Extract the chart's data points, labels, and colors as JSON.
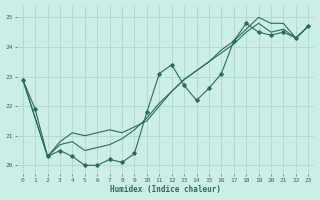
{
  "xlabel": "Humidex (Indice chaleur)",
  "bg_color": "#cceee8",
  "line_color": "#2a6b5e",
  "grid_color": "#b0d8d0",
  "ylim": [
    19.7,
    25.4
  ],
  "xlim": [
    -0.5,
    23.5
  ],
  "yticks": [
    20,
    21,
    22,
    23,
    24,
    25
  ],
  "xticks": [
    0,
    1,
    2,
    3,
    4,
    5,
    6,
    7,
    8,
    9,
    10,
    11,
    12,
    13,
    14,
    15,
    16,
    17,
    18,
    19,
    20,
    21,
    22,
    23
  ],
  "line1_x": [
    0,
    1,
    2,
    3,
    4,
    5,
    6,
    7,
    8,
    9,
    10,
    11,
    12,
    13,
    14,
    15,
    16,
    17,
    18,
    19,
    20,
    21,
    22,
    23
  ],
  "line1_y": [
    22.9,
    21.9,
    20.3,
    20.5,
    20.3,
    20.0,
    20.0,
    20.2,
    20.1,
    20.4,
    21.8,
    23.1,
    23.4,
    22.7,
    22.2,
    22.6,
    23.1,
    24.2,
    24.8,
    24.5,
    24.4,
    24.5,
    24.3,
    24.7
  ],
  "line2_x": [
    0,
    2,
    3,
    4,
    5,
    6,
    7,
    8,
    9,
    10,
    11,
    12,
    13,
    14,
    15,
    16,
    17,
    18,
    19,
    20,
    21,
    22,
    23
  ],
  "line2_y": [
    22.9,
    20.3,
    20.7,
    20.8,
    20.5,
    20.6,
    20.7,
    20.9,
    21.2,
    21.6,
    22.1,
    22.5,
    22.9,
    23.2,
    23.5,
    23.8,
    24.1,
    24.5,
    24.8,
    24.5,
    24.6,
    24.3,
    24.7
  ],
  "line3_x": [
    0,
    2,
    3,
    4,
    5,
    6,
    7,
    8,
    9,
    10,
    11,
    12,
    13,
    14,
    15,
    16,
    17,
    18,
    19,
    20,
    21,
    22,
    23
  ],
  "line3_y": [
    22.9,
    20.3,
    20.8,
    21.1,
    21.0,
    21.1,
    21.2,
    21.1,
    21.3,
    21.5,
    22.0,
    22.5,
    22.9,
    23.2,
    23.5,
    23.9,
    24.2,
    24.6,
    25.0,
    24.8,
    24.8,
    24.3,
    24.7
  ]
}
